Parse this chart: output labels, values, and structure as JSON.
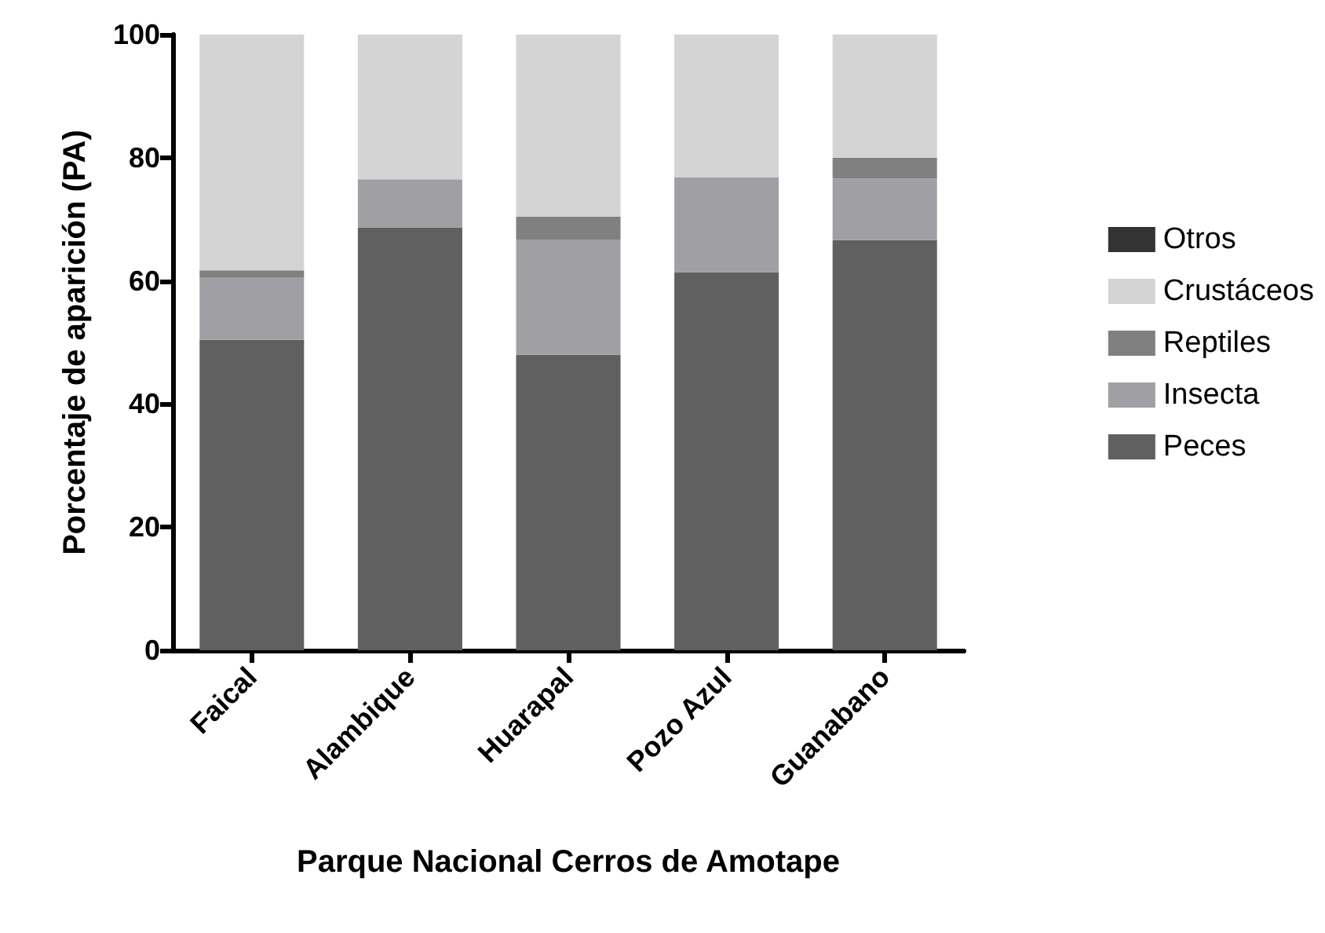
{
  "chart_data": {
    "type": "bar",
    "stacked": true,
    "xlabel": "Parque Nacional Cerros de Amotape",
    "ylabel": "Porcentaje de aparición (PA)",
    "categories": [
      "Faical",
      "Alambique",
      "Huarapal",
      "Pozo Azul",
      "Guanabano"
    ],
    "series": [
      {
        "name": "Peces",
        "color": "#606060",
        "values": [
          50.4,
          68.7,
          48.0,
          61.4,
          66.6
        ]
      },
      {
        "name": "Insecta",
        "color": "#a0a0a4",
        "values": [
          10.1,
          7.8,
          18.7,
          15.4,
          10.0
        ]
      },
      {
        "name": "Reptiles",
        "color": "#808080",
        "values": [
          1.2,
          0,
          3.7,
          0,
          3.4
        ]
      },
      {
        "name": "Crustáceos",
        "color": "#d4d4d4",
        "values": [
          38.3,
          23.5,
          29.6,
          23.2,
          20.0
        ]
      },
      {
        "name": "Otros",
        "color": "#333333",
        "values": [
          0,
          0,
          0,
          0,
          0
        ]
      }
    ],
    "ylim": [
      0,
      100
    ],
    "yticks": [
      0,
      20,
      40,
      60,
      80,
      100
    ],
    "grid": false,
    "legend": "right"
  }
}
